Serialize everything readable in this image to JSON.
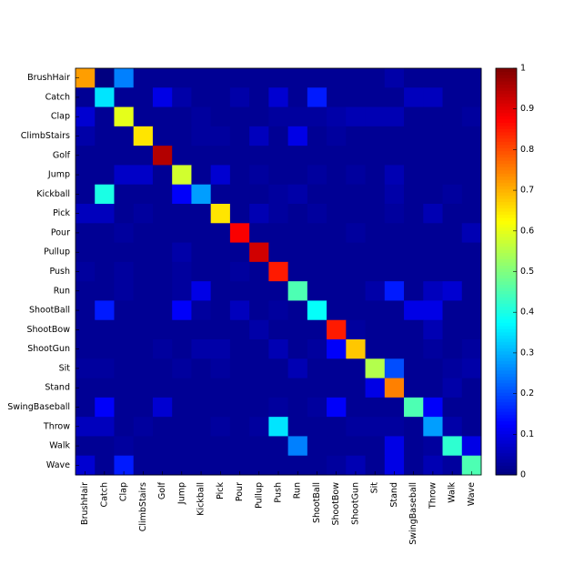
{
  "chart_data": {
    "type": "heatmap",
    "colormap": "jet",
    "categories": [
      "BrushHair",
      "Catch",
      "Clap",
      "ClimbStairs",
      "Golf",
      "Jump",
      "Kickball",
      "Pick",
      "Pour",
      "Pullup",
      "Push",
      "Run",
      "ShootBall",
      "ShootBow",
      "ShootGun",
      "Sit",
      "Stand",
      "SwingBaseball",
      "Throw",
      "Walk",
      "Wave"
    ],
    "values": [
      [
        0.72,
        0,
        0.25,
        0.02,
        0.02,
        0.02,
        0.02,
        0.02,
        0.02,
        0.02,
        0.02,
        0.02,
        0.02,
        0.02,
        0.02,
        0.02,
        0.04,
        0.02,
        0.02,
        0.02,
        0.02
      ],
      [
        0.02,
        0.35,
        0.02,
        0.02,
        0.1,
        0.04,
        0.02,
        0.02,
        0.04,
        0.02,
        0.08,
        0.02,
        0.15,
        0.02,
        0.02,
        0.02,
        0.02,
        0.06,
        0.06,
        0.02,
        0.02
      ],
      [
        0.08,
        0.02,
        0.6,
        0.02,
        0.02,
        0.02,
        0.03,
        0.02,
        0.02,
        0.02,
        0.03,
        0.03,
        0.03,
        0.04,
        0.05,
        0.05,
        0.05,
        0.02,
        0.02,
        0.02,
        0.03
      ],
      [
        0.04,
        0.02,
        0.02,
        0.65,
        0.02,
        0.02,
        0.03,
        0.03,
        0.02,
        0.06,
        0.02,
        0.1,
        0.02,
        0.03,
        0.02,
        0.02,
        0.02,
        0.02,
        0.02,
        0.02,
        0.02
      ],
      [
        0.02,
        0.02,
        0.02,
        0.02,
        0.95,
        0.02,
        0.02,
        0.02,
        0.02,
        0.02,
        0.02,
        0.02,
        0.02,
        0.02,
        0.02,
        0.02,
        0.02,
        0.02,
        0.02,
        0.02,
        0.02
      ],
      [
        0.02,
        0.02,
        0.07,
        0.07,
        0.02,
        0.58,
        0.02,
        0.08,
        0.02,
        0.03,
        0.02,
        0.02,
        0.03,
        0.02,
        0.03,
        0.02,
        0.05,
        0.02,
        0.02,
        0.02,
        0.02
      ],
      [
        0.02,
        0.4,
        0.02,
        0.02,
        0.02,
        0.12,
        0.28,
        0.02,
        0.02,
        0.02,
        0.03,
        0.04,
        0.02,
        0.02,
        0.02,
        0.02,
        0.04,
        0.02,
        0.02,
        0.03,
        0.02
      ],
      [
        0.06,
        0.06,
        0.02,
        0.03,
        0.02,
        0.02,
        0.02,
        0.65,
        0.02,
        0.05,
        0.03,
        0.02,
        0.03,
        0.02,
        0.02,
        0.02,
        0.03,
        0.02,
        0.05,
        0.02,
        0.02
      ],
      [
        0.02,
        0.02,
        0.03,
        0.02,
        0.02,
        0.02,
        0.02,
        0.02,
        0.88,
        0.02,
        0.02,
        0.02,
        0.02,
        0.02,
        0.03,
        0.02,
        0.02,
        0.02,
        0.02,
        0.02,
        0.05
      ],
      [
        0.02,
        0.02,
        0.02,
        0.02,
        0.02,
        0.04,
        0.02,
        0.02,
        0.02,
        0.92,
        0.02,
        0.02,
        0.02,
        0.02,
        0.02,
        0.02,
        0.02,
        0.02,
        0.02,
        0.02,
        0.02
      ],
      [
        0.03,
        0.02,
        0.03,
        0.02,
        0.02,
        0.03,
        0.02,
        0.02,
        0.03,
        0.02,
        0.85,
        0.02,
        0.02,
        0.02,
        0.02,
        0.02,
        0.02,
        0.02,
        0.02,
        0.02,
        0.02
      ],
      [
        0.02,
        0.02,
        0.03,
        0.02,
        0.02,
        0.03,
        0.1,
        0.02,
        0.02,
        0.02,
        0.02,
        0.45,
        0.02,
        0.02,
        0.02,
        0.04,
        0.15,
        0.02,
        0.06,
        0.08,
        0.02
      ],
      [
        0.02,
        0.15,
        0.02,
        0.02,
        0.02,
        0.12,
        0.03,
        0.02,
        0.06,
        0.02,
        0.03,
        0.02,
        0.38,
        0.02,
        0.02,
        0.02,
        0.02,
        0.1,
        0.1,
        0.02,
        0.02
      ],
      [
        0.02,
        0.02,
        0.02,
        0.02,
        0.02,
        0.02,
        0.02,
        0.02,
        0.02,
        0.04,
        0.02,
        0.02,
        0.02,
        0.85,
        0.03,
        0.02,
        0.02,
        0.02,
        0.05,
        0.02,
        0.02
      ],
      [
        0.02,
        0.02,
        0.02,
        0.02,
        0.03,
        0.02,
        0.04,
        0.04,
        0.02,
        0.02,
        0.05,
        0.02,
        0.03,
        0.12,
        0.68,
        0.02,
        0.02,
        0.02,
        0.03,
        0.02,
        0.03
      ],
      [
        0.03,
        0.03,
        0.02,
        0.02,
        0.02,
        0.03,
        0.02,
        0.03,
        0.02,
        0.02,
        0.02,
        0.05,
        0.02,
        0.02,
        0.02,
        0.55,
        0.2,
        0.02,
        0.02,
        0.03,
        0.04
      ],
      [
        0.02,
        0.02,
        0.02,
        0.02,
        0.02,
        0.02,
        0.02,
        0.02,
        0.02,
        0.02,
        0.02,
        0.02,
        0.02,
        0.02,
        0.02,
        0.1,
        0.75,
        0.02,
        0.02,
        0.04,
        0.02
      ],
      [
        0.02,
        0.12,
        0.02,
        0.02,
        0.08,
        0.02,
        0.02,
        0.02,
        0.02,
        0.02,
        0.03,
        0.02,
        0.03,
        0.12,
        0.02,
        0.02,
        0.02,
        0.45,
        0.12,
        0.02,
        0.02
      ],
      [
        0.06,
        0.06,
        0.02,
        0.03,
        0.02,
        0.02,
        0.02,
        0.03,
        0.02,
        0.03,
        0.35,
        0.02,
        0.02,
        0.02,
        0.03,
        0.03,
        0.03,
        0.02,
        0.28,
        0.04,
        0.02
      ],
      [
        0.02,
        0.02,
        0.03,
        0.02,
        0.02,
        0.02,
        0.02,
        0.02,
        0.02,
        0.02,
        0.02,
        0.25,
        0.02,
        0.02,
        0.02,
        0.02,
        0.1,
        0.02,
        0.03,
        0.42,
        0.1
      ],
      [
        0.08,
        0.02,
        0.15,
        0.02,
        0.02,
        0.02,
        0.02,
        0.02,
        0.02,
        0.02,
        0.02,
        0.02,
        0.02,
        0.03,
        0.05,
        0.02,
        0.1,
        0.02,
        0.05,
        0.03,
        0.45
      ]
    ],
    "clim": [
      0,
      1
    ],
    "cticks": [
      0,
      0.1,
      0.2,
      0.3,
      0.4,
      0.5,
      0.6,
      0.7,
      0.8,
      0.9,
      1
    ]
  }
}
